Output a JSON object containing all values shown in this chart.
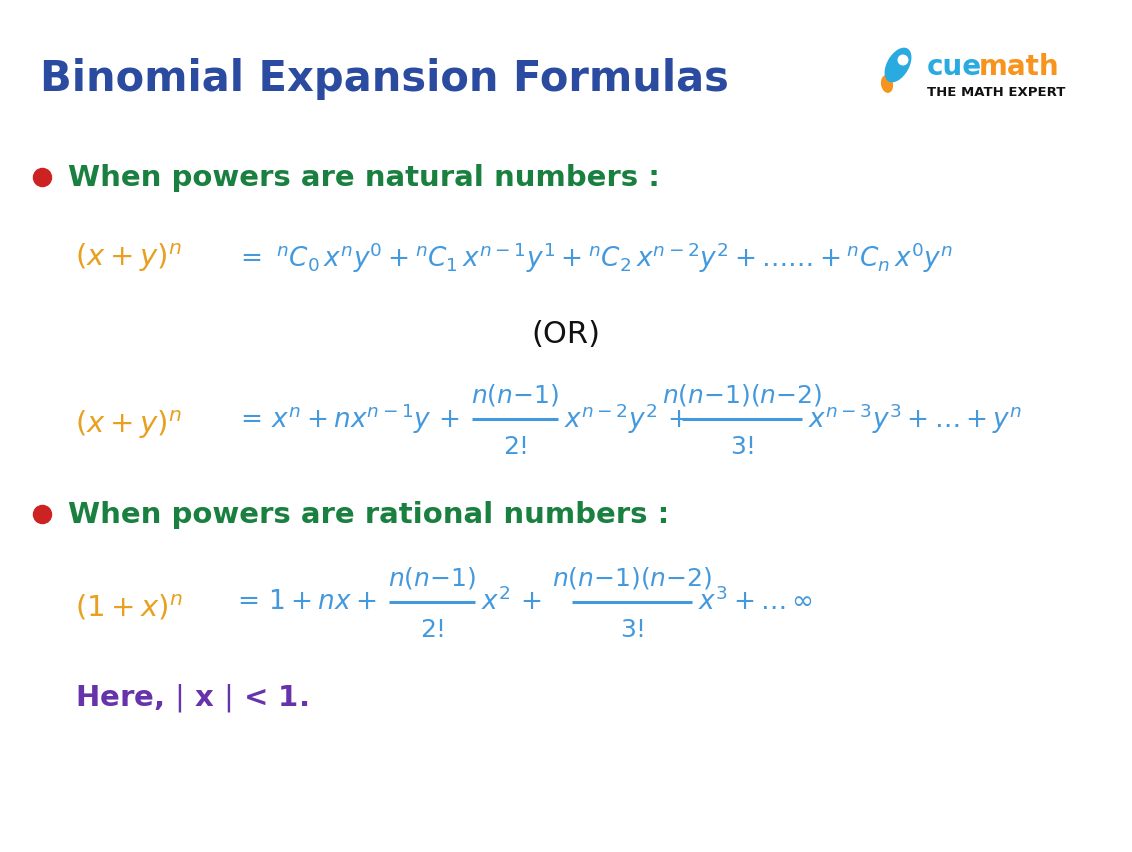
{
  "title": "Binomial Expansion Formulas",
  "title_color": "#2B4BA0",
  "bg_color": "#FFFFFF",
  "bullet_color": "#CC2222",
  "heading_color": "#1A8040",
  "orange_color": "#E8A020",
  "blue_color": "#4499DD",
  "black_color": "#111111",
  "purple_color": "#6633AA",
  "heading1": "When powers are natural numbers :",
  "heading2": "When powers are rational numbers :",
  "here_text": "Here, | x | < 1.",
  "cuemath_blue": "#29ABE2",
  "cuemath_orange": "#F7941D",
  "cuemath_sub": "THE MATH EXPERT",
  "fig_width": 11.32,
  "fig_height": 8.53,
  "dpi": 100
}
